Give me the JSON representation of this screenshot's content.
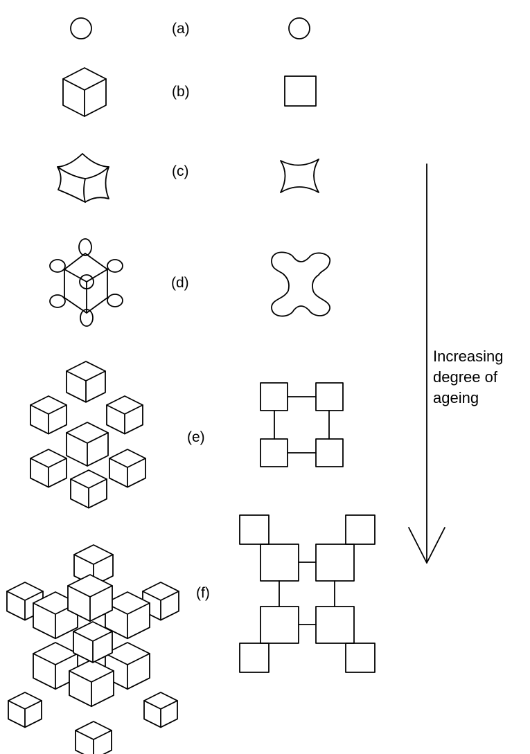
{
  "stages": [
    {
      "label": "(a)"
    },
    {
      "label": "(b)"
    },
    {
      "label": "(c)"
    },
    {
      "label": "(d)"
    },
    {
      "label": "(e)"
    },
    {
      "label": "(f)"
    }
  ],
  "arrow_caption": [
    "Increasing",
    "degree of",
    "ageing"
  ]
}
